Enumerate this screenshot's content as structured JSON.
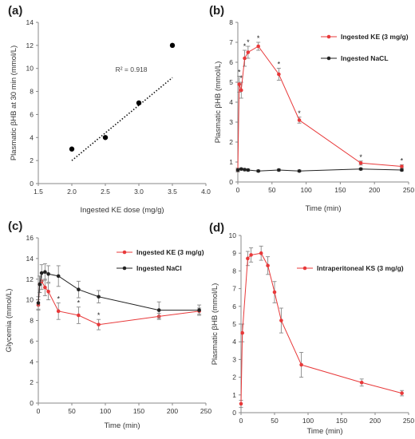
{
  "colors": {
    "red": "#e8393a",
    "black": "#222222",
    "errorbar": "#888888",
    "axis": "#888888"
  },
  "chart_data": [
    {
      "id": "a",
      "panel_label": "(a)",
      "type": "scatter",
      "xlabel": "Ingested KE dose (mg/g)",
      "ylabel": "Plasmatic βHB at 30 min (mmol/L)",
      "xlim": [
        1.5,
        4
      ],
      "ylim": [
        0,
        14
      ],
      "xticks": [
        1.5,
        2,
        2.5,
        3,
        3.5,
        4
      ],
      "yticks": [
        0,
        2,
        4,
        6,
        8,
        10,
        12,
        14
      ],
      "tick_decimals_x": 1,
      "series": [
        {
          "color": "#000000",
          "points": [
            [
              2,
              3
            ],
            [
              2.5,
              4
            ],
            [
              3,
              7
            ],
            [
              3.5,
              12
            ]
          ]
        }
      ],
      "trendline": {
        "style": "dotted",
        "points": [
          [
            2,
            2
          ],
          [
            3.5,
            9.2
          ]
        ]
      },
      "annotations": [
        {
          "text": "R² = 0.918",
          "x": 2.65,
          "y": 9.7
        }
      ],
      "grid": false
    },
    {
      "id": "b",
      "panel_label": "(b)",
      "type": "line",
      "xlabel": "Time (min)",
      "ylabel": "Plasmatic βHB (mmol/L)",
      "xlim": [
        0,
        250
      ],
      "ylim": [
        0,
        8
      ],
      "xticks": [
        0,
        50,
        100,
        150,
        200,
        250
      ],
      "yticks": [
        0,
        1,
        2,
        3,
        4,
        5,
        6,
        7,
        8
      ],
      "legend_position": "top-right",
      "series": [
        {
          "name": "Ingested KE (3 mg/g)",
          "color": "#e8393a",
          "x": [
            0,
            2,
            5,
            10,
            15,
            30,
            60,
            90,
            180,
            240
          ],
          "y": [
            0.6,
            4.9,
            4.6,
            6.2,
            6.5,
            6.8,
            5.4,
            3.1,
            0.95,
            0.78
          ],
          "err": [
            0.1,
            0.4,
            0.4,
            0.4,
            0.3,
            0.2,
            0.3,
            0.15,
            0.1,
            0.08
          ],
          "stars": [
            2,
            5,
            10,
            15,
            30,
            60,
            90,
            180,
            240
          ]
        },
        {
          "name": "Ingested NaCL",
          "color": "#222222",
          "x": [
            0,
            5,
            10,
            15,
            30,
            60,
            90,
            180,
            240
          ],
          "y": [
            0.6,
            0.65,
            0.62,
            0.6,
            0.55,
            0.6,
            0.55,
            0.65,
            0.6
          ],
          "err": [
            0.05,
            0.05,
            0.05,
            0.05,
            0.05,
            0.05,
            0.05,
            0.05,
            0.05
          ]
        }
      ],
      "grid": false
    },
    {
      "id": "c",
      "panel_label": "(c)",
      "type": "line",
      "xlabel": "Time (min)",
      "ylabel": "Glycemia (mmol/L)",
      "xlim": [
        0,
        250
      ],
      "ylim": [
        0,
        16
      ],
      "xticks": [
        0,
        50,
        100,
        150,
        200,
        250
      ],
      "yticks": [
        0,
        2,
        4,
        6,
        8,
        10,
        12,
        14,
        16
      ],
      "legend_position": "top-right",
      "series": [
        {
          "name": "Ingested KE (3 mg/g)",
          "color": "#e8393a",
          "x": [
            0,
            2,
            5,
            10,
            15,
            30,
            60,
            90,
            180,
            240
          ],
          "y": [
            9.5,
            11.5,
            11.8,
            11.2,
            10.8,
            8.9,
            8.5,
            7.6,
            8.4,
            8.9
          ],
          "err": [
            0.5,
            0.8,
            0.8,
            0.8,
            0.8,
            0.8,
            0.8,
            0.5,
            0.3,
            0.3
          ],
          "stars": [
            30,
            60,
            90
          ]
        },
        {
          "name": "Ingested NaCl",
          "color": "#222222",
          "x": [
            0,
            2,
            5,
            10,
            15,
            30,
            60,
            90,
            180,
            240
          ],
          "y": [
            9.7,
            11.5,
            12.6,
            12.7,
            12.5,
            12.3,
            11.0,
            10.3,
            9.0,
            9.0
          ],
          "err": [
            0.6,
            0.8,
            0.8,
            0.8,
            0.8,
            1.0,
            0.8,
            0.6,
            0.8,
            0.5
          ]
        }
      ],
      "grid": false
    },
    {
      "id": "d",
      "panel_label": "(d)",
      "type": "line",
      "xlabel": "Time (min)",
      "ylabel": "Plasmatic βHB (mmol/L)",
      "xlim": [
        0,
        250
      ],
      "ylim": [
        0,
        10
      ],
      "xticks": [
        0,
        50,
        100,
        150,
        200,
        250
      ],
      "yticks": [
        0,
        1,
        2,
        3,
        4,
        5,
        6,
        7,
        8,
        9,
        10
      ],
      "legend_position": "top-right",
      "series": [
        {
          "name": "Intraperitoneal KS (3 mg/g)",
          "color": "#e8393a",
          "x": [
            0,
            2,
            10,
            15,
            30,
            40,
            50,
            60,
            90,
            180,
            240
          ],
          "y": [
            0.5,
            4.5,
            8.7,
            8.9,
            9.0,
            8.3,
            6.8,
            5.2,
            2.7,
            1.7,
            1.1
          ],
          "err": [
            0.2,
            0.5,
            0.4,
            0.4,
            0.4,
            0.5,
            0.6,
            0.7,
            0.7,
            0.2,
            0.15
          ]
        }
      ],
      "grid": false
    }
  ]
}
